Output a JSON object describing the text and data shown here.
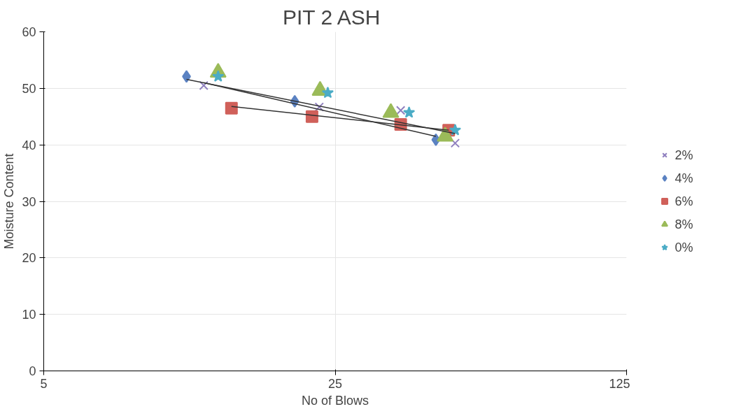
{
  "chart_data": {
    "type": "scatter",
    "title": "PIT 2  ASH",
    "xlabel": "No of Blows",
    "ylabel": "Moisture Content",
    "log": "x",
    "xlim": [
      5,
      125
    ],
    "xticks": [
      5,
      25,
      125
    ],
    "ylim": [
      0,
      60
    ],
    "yticks": [
      0,
      10,
      20,
      30,
      40,
      50,
      60
    ],
    "grid": true,
    "legend": "right",
    "series": [
      {
        "name": "2%",
        "color": "#8f7fbf",
        "marker": "cross",
        "x": [
          12.1,
          22.9,
          35.9,
          48.5
        ],
        "values": [
          50.5,
          46.7,
          46.1,
          40.3
        ]
      },
      {
        "name": "4%",
        "color": "#5b82c2",
        "marker": "diamond",
        "x": [
          11.0,
          20.0,
          43.6
        ],
        "values": [
          52.1,
          47.7,
          40.9
        ]
      },
      {
        "name": "6%",
        "color": "#d0605a",
        "marker": "square",
        "x": [
          14.1,
          22.0,
          35.9,
          46.8
        ],
        "values": [
          46.5,
          45.0,
          43.6,
          42.6
        ]
      },
      {
        "name": "8%",
        "color": "#9bbb59",
        "marker": "triangle",
        "x": [
          13.1,
          23.0,
          34.0,
          45.9
        ],
        "values": [
          52.8,
          49.6,
          45.7,
          41.5
        ]
      },
      {
        "name": "0%",
        "color": "#4bacc6",
        "marker": "star",
        "x": [
          13.1,
          24.0,
          37.6,
          48.5
        ],
        "values": [
          52.1,
          49.2,
          45.7,
          42.6
        ]
      },
      {
        "type": "line",
        "color": "#333333",
        "x": [
          11.0,
          48.5
        ],
        "values": [
          51.6,
          42.0
        ]
      },
      {
        "type": "line",
        "color": "#333333",
        "x": [
          12.1,
          43.6
        ],
        "values": [
          51.0,
          41.5
        ]
      },
      {
        "type": "line",
        "color": "#333333",
        "x": [
          14.1,
          46.8
        ],
        "values": [
          46.8,
          42.6
        ]
      }
    ]
  }
}
